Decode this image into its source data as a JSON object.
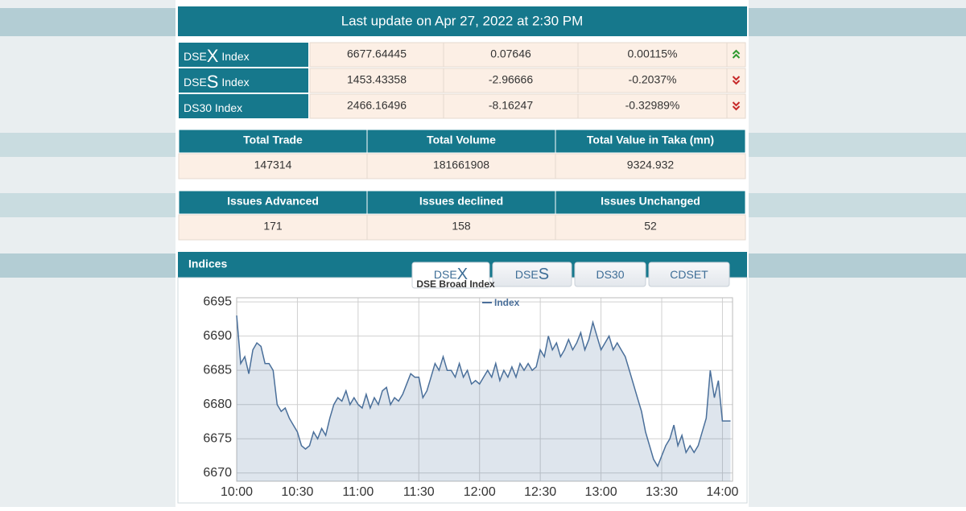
{
  "header": {
    "title": "Last update on Apr 27, 2022 at 2:30 PM"
  },
  "indices": [
    {
      "name": [
        "DSE",
        "X",
        " Index"
      ],
      "value": "6677.64445",
      "change": "0.07646",
      "percent": "0.00115%",
      "trend": "up"
    },
    {
      "name": [
        "DSE",
        "S",
        " Index"
      ],
      "value": "1453.43358",
      "change": "-2.96666",
      "percent": "-0.2037%",
      "trend": "down"
    },
    {
      "name": [
        "DS30 Index"
      ],
      "value": "2466.16496",
      "change": "-8.16247",
      "percent": "-0.32989%",
      "trend": "down"
    }
  ],
  "summary_tables": [
    {
      "headers": [
        "Total Trade",
        "Total Volume",
        "Total Value in Taka (mn)"
      ],
      "values": [
        "147314",
        "181661908",
        "9324.932"
      ]
    },
    {
      "headers": [
        "Issues Advanced",
        "Issues declined",
        "Issues Unchanged"
      ],
      "values": [
        "171",
        "158",
        "52"
      ]
    }
  ],
  "panel": {
    "title": "Indices",
    "tabs": [
      [
        "DSE",
        "X"
      ],
      [
        "DSE",
        "S"
      ],
      [
        "DS30"
      ],
      [
        "CDSET"
      ]
    ],
    "active_tab": 0
  },
  "chart_data": {
    "type": "line",
    "title": "DSE Broad Index",
    "area": true,
    "grid": true,
    "x": [
      "10:00",
      "10:02",
      "10:04",
      "10:06",
      "10:08",
      "10:10",
      "10:12",
      "10:14",
      "10:16",
      "10:18",
      "10:20",
      "10:22",
      "10:24",
      "10:26",
      "10:28",
      "10:30",
      "10:32",
      "10:34",
      "10:36",
      "10:38",
      "10:40",
      "10:42",
      "10:44",
      "10:46",
      "10:48",
      "10:50",
      "10:52",
      "10:54",
      "10:56",
      "10:58",
      "11:00",
      "11:02",
      "11:04",
      "11:06",
      "11:08",
      "11:10",
      "11:12",
      "11:14",
      "11:16",
      "11:18",
      "11:20",
      "11:22",
      "11:24",
      "11:26",
      "11:28",
      "11:30",
      "11:32",
      "11:34",
      "11:36",
      "11:38",
      "11:40",
      "11:42",
      "11:44",
      "11:46",
      "11:48",
      "11:50",
      "11:52",
      "11:54",
      "11:56",
      "11:58",
      "12:00",
      "12:02",
      "12:04",
      "12:06",
      "12:08",
      "12:10",
      "12:12",
      "12:14",
      "12:16",
      "12:18",
      "12:20",
      "12:22",
      "12:24",
      "12:26",
      "12:28",
      "12:30",
      "12:32",
      "12:34",
      "12:36",
      "12:38",
      "12:40",
      "12:42",
      "12:44",
      "12:46",
      "12:48",
      "12:50",
      "12:52",
      "12:54",
      "12:56",
      "12:58",
      "13:00",
      "13:02",
      "13:04",
      "13:06",
      "13:08",
      "13:10",
      "13:12",
      "13:14",
      "13:16",
      "13:18",
      "13:20",
      "13:22",
      "13:24",
      "13:26",
      "13:28",
      "13:30",
      "13:32",
      "13:34",
      "13:36",
      "13:38",
      "13:40",
      "13:42",
      "13:44",
      "13:46",
      "13:48",
      "13:50",
      "13:52",
      "13:54",
      "13:56",
      "13:58",
      "14:00",
      "14:04"
    ],
    "series": [
      {
        "name": "Index",
        "color": "#4a6f9a",
        "values": [
          6693,
          6686,
          6687,
          6684.5,
          6688,
          6689,
          6688.5,
          6686,
          6686,
          6685,
          6680,
          6679,
          6679.5,
          6678,
          6677,
          6676,
          6674,
          6673.5,
          6674,
          6676,
          6675,
          6676.5,
          6675.5,
          6678,
          6680,
          6681,
          6680.5,
          6682,
          6680,
          6681,
          6680,
          6679.5,
          6681.5,
          6679.5,
          6681,
          6680,
          6682,
          6682.5,
          6680,
          6681,
          6680.5,
          6681.5,
          6683,
          6684.5,
          6684,
          6684,
          6681,
          6682,
          6684,
          6686,
          6685,
          6687,
          6685,
          6685,
          6684,
          6686,
          6684,
          6685,
          6683,
          6683.5,
          6683,
          6684,
          6685,
          6684,
          6686,
          6683.5,
          6685,
          6684,
          6685.5,
          6684,
          6686,
          6685,
          6686,
          6685,
          6685.5,
          6688,
          6687,
          6690,
          6688,
          6689,
          6687,
          6688,
          6689.5,
          6688,
          6689,
          6690.5,
          6688,
          6689.5,
          6692,
          6690,
          6688,
          6689,
          6690,
          6688,
          6689,
          6688,
          6687,
          6685,
          6683,
          6681,
          6679,
          6676,
          6674,
          6672,
          6671,
          6672.5,
          6674,
          6675,
          6677,
          6674,
          6675.5,
          6673,
          6674,
          6673,
          6674,
          6676,
          6678,
          6685,
          6681,
          6683.5,
          6677.6,
          6677.6
        ]
      }
    ],
    "xlim": [
      "10:00",
      "14:05"
    ],
    "xticks": [
      "10:00",
      "10:30",
      "11:00",
      "11:30",
      "12:00",
      "12:30",
      "13:00",
      "13:30",
      "14:00"
    ],
    "ylim": [
      6668.8,
      6695.6
    ],
    "yticks": [
      6670,
      6675,
      6680,
      6685,
      6690,
      6695
    ]
  }
}
